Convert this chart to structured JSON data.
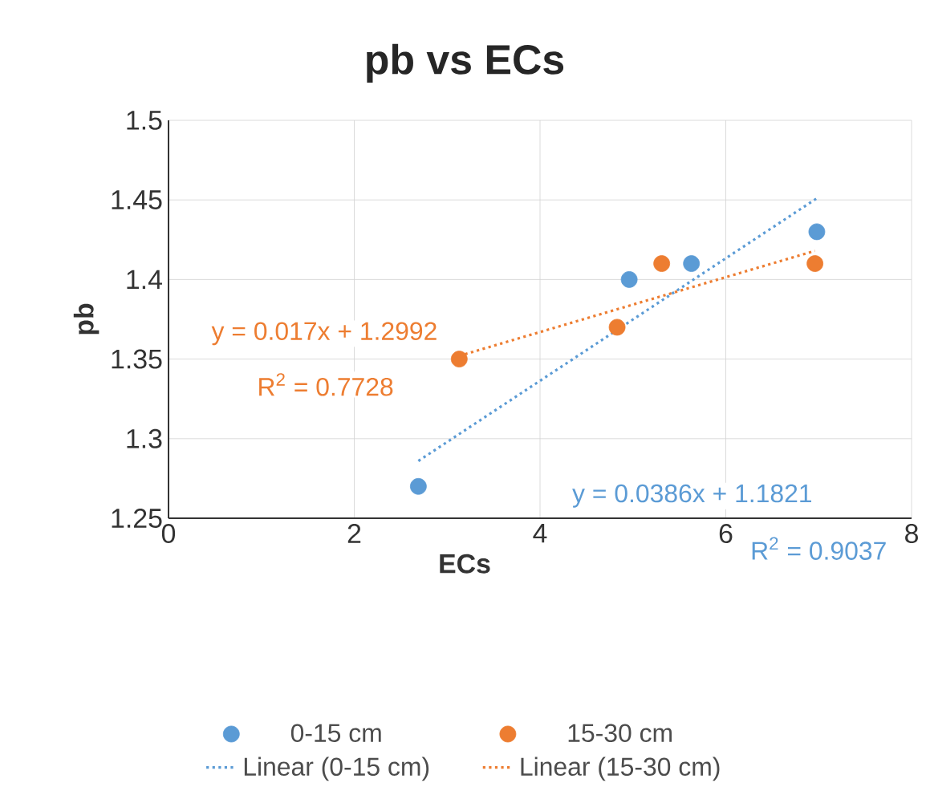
{
  "chart_data": {
    "type": "scatter",
    "title": "pb vs ECs",
    "xlabel": "ECs",
    "ylabel": "pb",
    "xlim": [
      0,
      8
    ],
    "xticks": [
      0,
      2,
      4,
      6,
      8
    ],
    "ylim": [
      1.25,
      1.5
    ],
    "yticks": [
      1.25,
      1.3,
      1.35,
      1.4,
      1.45,
      1.5
    ],
    "grid": true,
    "legend": "bottom",
    "series": [
      {
        "name": "0-15 cm",
        "type": "scatter",
        "marker": "circle",
        "color": "#5b9bd5",
        "x": [
          2.69,
          4.96,
          5.63,
          6.98
        ],
        "values": [
          1.27,
          1.4,
          1.41,
          1.43
        ]
      },
      {
        "name": "15-30 cm",
        "type": "scatter",
        "marker": "circle",
        "color": "#ed7d31",
        "x": [
          3.13,
          4.83,
          5.31,
          6.96
        ],
        "values": [
          1.35,
          1.37,
          1.41,
          1.41
        ]
      },
      {
        "name": "Linear (0-15 cm)",
        "type": "line",
        "marker": "none",
        "line_style": "dotted",
        "color": "#5b9bd5",
        "x": [
          2.69,
          6.98
        ],
        "values": [
          1.286,
          1.451
        ]
      },
      {
        "name": "Linear (15-30 cm)",
        "type": "line",
        "marker": "none",
        "line_style": "dotted",
        "color": "#ed7d31",
        "x": [
          3.13,
          6.96
        ],
        "values": [
          1.352,
          1.418
        ]
      }
    ],
    "annotations": [
      "y = 0.017x + 1.2992",
      "R$^{2}$ = 0.7728",
      "y = 0.0386x + 1.1821",
      "R$^{2}$ = 0.9037"
    ]
  }
}
